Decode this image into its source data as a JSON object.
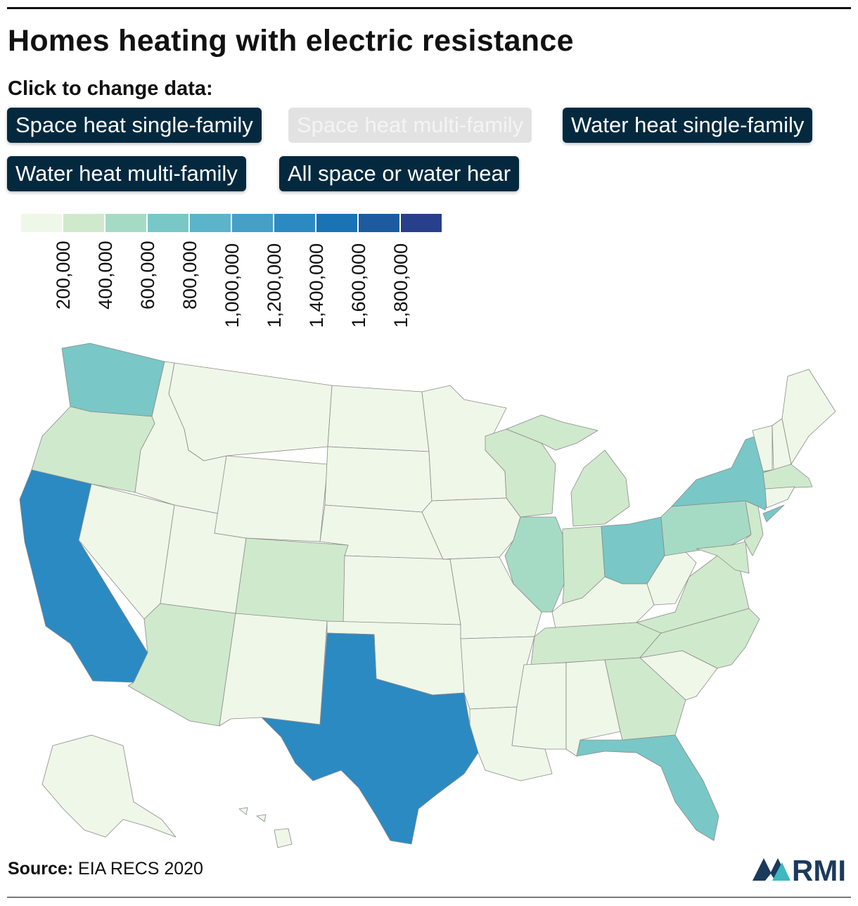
{
  "title": "Homes heating with electric resistance",
  "prompt": "Click to change data:",
  "buttons": [
    {
      "label": "Space heat single-family",
      "active": true
    },
    {
      "label": "Space heat multi-family",
      "active": false
    },
    {
      "label": "Water heat single-family",
      "active": true
    },
    {
      "label": "Water heat multi-family",
      "active": true
    },
    {
      "label": "All space or water hear",
      "active": true
    }
  ],
  "legend": {
    "ticks": [
      "200,000",
      "400,000",
      "600,000",
      "800,000",
      "1,000,000",
      "1,200,000",
      "1,400,000",
      "1,600,000",
      "1,800,000"
    ],
    "colors": [
      "#eff7e8",
      "#cfe9cc",
      "#a5dbc4",
      "#79c7c7",
      "#5bb4ca",
      "#44a0c7",
      "#2b8ac2",
      "#1a73b5",
      "#1d5ba1",
      "#283f8c"
    ]
  },
  "map_colors": {
    "WA": "#79c7c7",
    "OR": "#cfe9cc",
    "CA": "#2b8ac2",
    "TX": "#2b8ac2",
    "FL": "#79c7c7",
    "NY": "#79c7c7",
    "PA": "#a5dbc4",
    "OH": "#79c7c7",
    "IL": "#a5dbc4",
    "AZ": "#cfe9cc",
    "CO": "#cfe9cc",
    "WI": "#cfe9cc",
    "MI": "#cfe9cc",
    "IN": "#cfe9cc",
    "NC": "#cfe9cc",
    "VA": "#cfe9cc",
    "TN": "#cfe9cc",
    "GA": "#cfe9cc",
    "NJ": "#cfe9cc",
    "MA": "#cfe9cc",
    "MD": "#cfe9cc",
    "other": "#eff7e8"
  },
  "source": {
    "label": "Source:",
    "text": "EIA RECS 2020"
  },
  "logo": {
    "text": "RMI",
    "color": "#1b3a5c",
    "accent": "#3fb8c0"
  }
}
